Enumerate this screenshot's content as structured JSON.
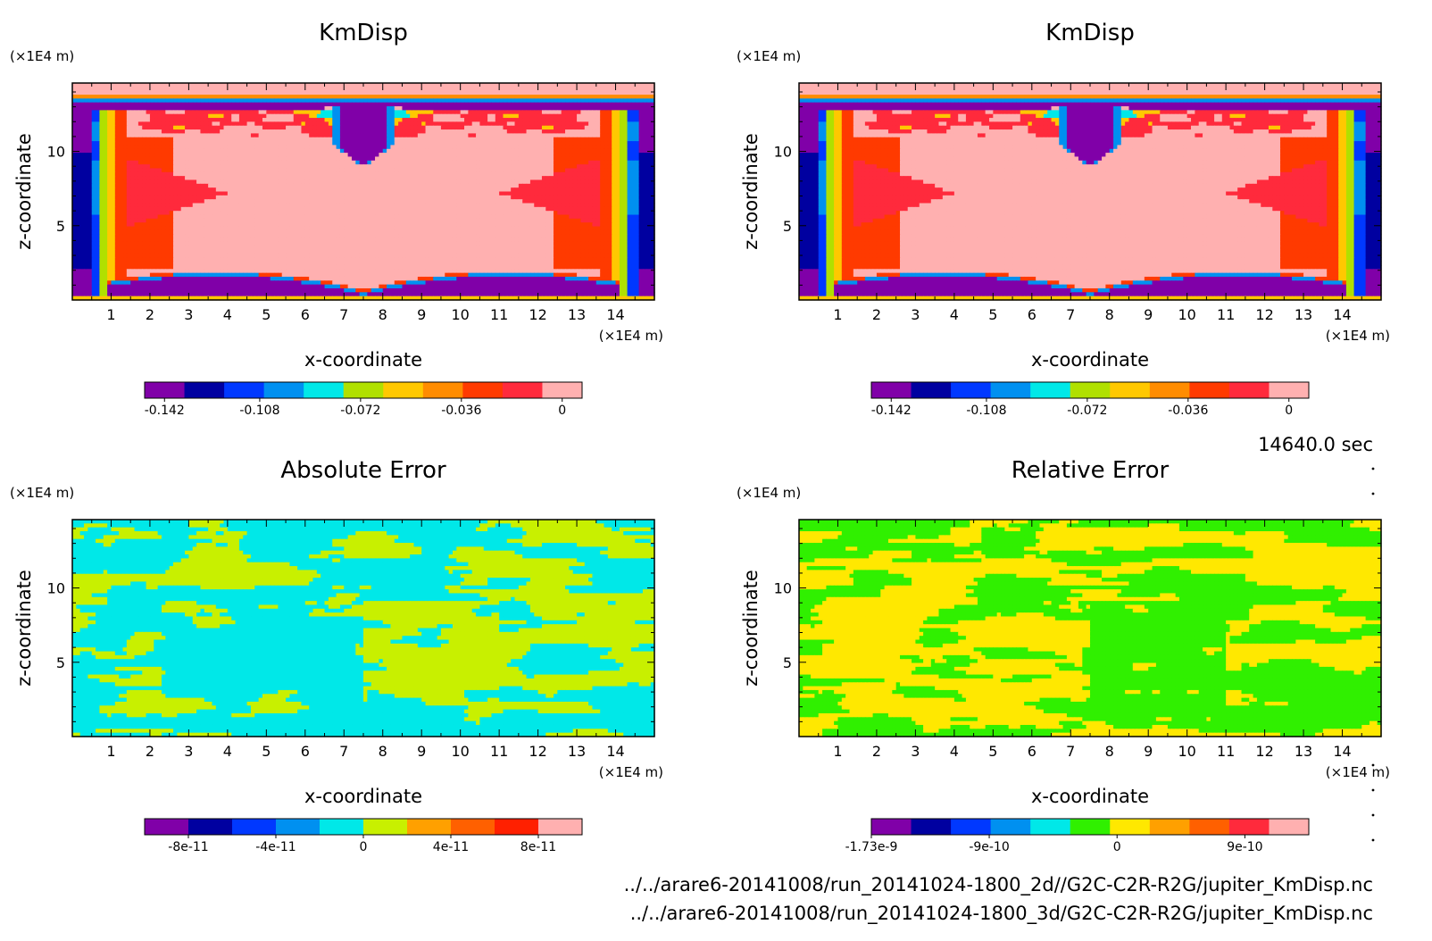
{
  "figure": {
    "time_label": "14640.0 sec",
    "file_lines": [
      "../../arare6-20141008/run_20141024-1800_2d//G2C-C2R-R2G/jupiter_KmDisp.nc",
      "../../arare6-20141008/run_20141024-1800_3d/G2C-C2R-R2G/jupiter_KmDisp.nc"
    ]
  },
  "chart_data": [
    {
      "type": "heatmap",
      "title": "KmDisp",
      "xlabel": "x-coordinate",
      "ylabel": "z-coordinate",
      "x_unit": "(×1E4 m)",
      "y_unit": "(×1E4 m)",
      "xlim": [
        0,
        15
      ],
      "ylim": [
        0,
        14.6
      ],
      "x_ticks": [
        1,
        2,
        3,
        4,
        5,
        6,
        7,
        8,
        9,
        10,
        11,
        12,
        13,
        14
      ],
      "y_ticks": [
        5,
        10
      ],
      "field": "kmdisp",
      "colorbar": {
        "colors": [
          "#8000a8",
          "#0000a0",
          "#0038ff",
          "#0090f0",
          "#00e8e8",
          "#b0e000",
          "#ffc800",
          "#ff8c00",
          "#ff3a00",
          "#ff2a3c",
          "#ffb0b0"
        ],
        "tick_values": [
          -0.142,
          -0.108,
          -0.072,
          -0.036,
          0
        ],
        "tick_labels": [
          "-0.142",
          "-0.108",
          "-0.072",
          "-0.036",
          "0"
        ]
      }
    },
    {
      "type": "heatmap",
      "title": "KmDisp",
      "xlabel": "x-coordinate",
      "ylabel": "z-coordinate",
      "x_unit": "(×1E4 m)",
      "y_unit": "(×1E4 m)",
      "xlim": [
        0,
        15
      ],
      "ylim": [
        0,
        14.6
      ],
      "x_ticks": [
        1,
        2,
        3,
        4,
        5,
        6,
        7,
        8,
        9,
        10,
        11,
        12,
        13,
        14
      ],
      "y_ticks": [
        5,
        10
      ],
      "field": "kmdisp",
      "colorbar": {
        "colors": [
          "#8000a8",
          "#0000a0",
          "#0038ff",
          "#0090f0",
          "#00e8e8",
          "#b0e000",
          "#ffc800",
          "#ff8c00",
          "#ff3a00",
          "#ff2a3c",
          "#ffb0b0"
        ],
        "tick_values": [
          -0.142,
          -0.108,
          -0.072,
          -0.036,
          0
        ],
        "tick_labels": [
          "-0.142",
          "-0.108",
          "-0.072",
          "-0.036",
          "0"
        ]
      }
    },
    {
      "type": "heatmap",
      "title": "Absolute Error",
      "xlabel": "x-coordinate",
      "ylabel": "z-coordinate",
      "x_unit": "(×1E4 m)",
      "y_unit": "(×1E4 m)",
      "xlim": [
        0,
        15
      ],
      "ylim": [
        0,
        14.6
      ],
      "x_ticks": [
        1,
        2,
        3,
        4,
        5,
        6,
        7,
        8,
        9,
        10,
        11,
        12,
        13,
        14
      ],
      "y_ticks": [
        5,
        10
      ],
      "field": "abs_error",
      "colors_used": [
        "#00f0f0",
        "#c8f000"
      ],
      "colorbar": {
        "colors": [
          "#8000a8",
          "#0000a0",
          "#0038ff",
          "#0090f0",
          "#00e8e8",
          "#c8f000",
          "#ffa000",
          "#ff6000",
          "#ff2000",
          "#ffb0b0"
        ],
        "tick_values": [
          -8e-11,
          -4e-11,
          0,
          4e-11,
          8e-11
        ],
        "tick_labels": [
          "-8e-11",
          "-4e-11",
          "0",
          "4e-11",
          "8e-11"
        ]
      }
    },
    {
      "type": "heatmap",
      "title": "Relative Error",
      "xlabel": "x-coordinate",
      "ylabel": "z-coordinate",
      "x_unit": "(×1E4 m)",
      "y_unit": "(×1E4 m)",
      "xlim": [
        0,
        15
      ],
      "ylim": [
        0,
        14.6
      ],
      "x_ticks": [
        1,
        2,
        3,
        4,
        5,
        6,
        7,
        8,
        9,
        10,
        11,
        12,
        13,
        14
      ],
      "y_ticks": [
        5,
        10
      ],
      "field": "rel_error",
      "colors_used": [
        "#30f000",
        "#ffe800"
      ],
      "colorbar": {
        "colors": [
          "#8000a8",
          "#0000a0",
          "#0038ff",
          "#0090f0",
          "#00e8e8",
          "#30f000",
          "#ffe800",
          "#ffa000",
          "#ff6000",
          "#ff2a3c",
          "#ffb0b0"
        ],
        "tick_values": [
          -1.73e-09,
          -9e-10,
          0,
          9e-10
        ],
        "tick_labels": [
          "-1.73e-9",
          "-9e-10",
          "0",
          "9e-10"
        ]
      }
    }
  ]
}
